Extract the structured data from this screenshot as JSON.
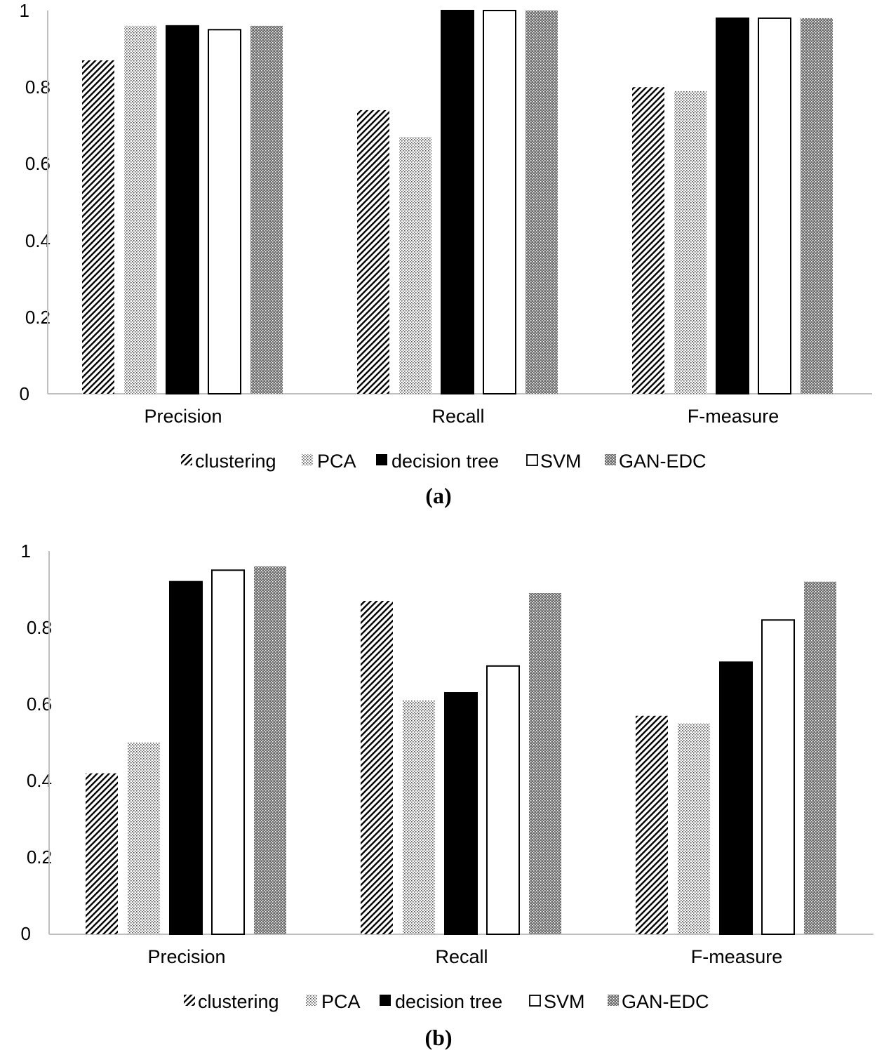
{
  "chart_data": [
    {
      "type": "bar",
      "panel_label": "(a)",
      "categories": [
        "Precision",
        "Recall",
        "F-measure"
      ],
      "series": [
        {
          "name": "clustering",
          "pattern": "diag-hatch",
          "values": [
            0.87,
            0.74,
            0.8
          ]
        },
        {
          "name": "PCA",
          "pattern": "dots",
          "values": [
            0.96,
            0.67,
            0.79
          ]
        },
        {
          "name": "decision tree",
          "pattern": "solid-black",
          "values": [
            0.96,
            1.0,
            0.98
          ]
        },
        {
          "name": "SVM",
          "pattern": "white",
          "values": [
            0.95,
            1.0,
            0.98
          ]
        },
        {
          "name": "GAN-EDC",
          "pattern": "dense-dots",
          "values": [
            0.96,
            1.0,
            0.98
          ]
        }
      ],
      "ylim": [
        0,
        1
      ],
      "yticks": [
        "0",
        "0.2",
        "0.4",
        "0.6",
        "0.8",
        "1"
      ],
      "grid": false,
      "legend": "bottom"
    },
    {
      "type": "bar",
      "panel_label": "(b)",
      "categories": [
        "Precision",
        "Recall",
        "F-measure"
      ],
      "series": [
        {
          "name": "clustering",
          "pattern": "diag-hatch",
          "values": [
            0.42,
            0.87,
            0.57
          ]
        },
        {
          "name": "PCA",
          "pattern": "dots",
          "values": [
            0.5,
            0.61,
            0.55
          ]
        },
        {
          "name": "decision tree",
          "pattern": "solid-black",
          "values": [
            0.92,
            0.63,
            0.71
          ]
        },
        {
          "name": "SVM",
          "pattern": "white",
          "values": [
            0.95,
            0.7,
            0.82
          ]
        },
        {
          "name": "GAN-EDC",
          "pattern": "dense-dots",
          "values": [
            0.96,
            0.89,
            0.92
          ]
        }
      ],
      "ylim": [
        0,
        1
      ],
      "yticks": [
        "0",
        "0.2",
        "0.4",
        "0.6",
        "0.8",
        "1"
      ],
      "grid": false,
      "legend": "bottom"
    }
  ],
  "colors": {
    "bar_stroke": "#000000",
    "axis": "#bfbfbf",
    "pattern_ink": "#000000",
    "background": "#ffffff"
  }
}
